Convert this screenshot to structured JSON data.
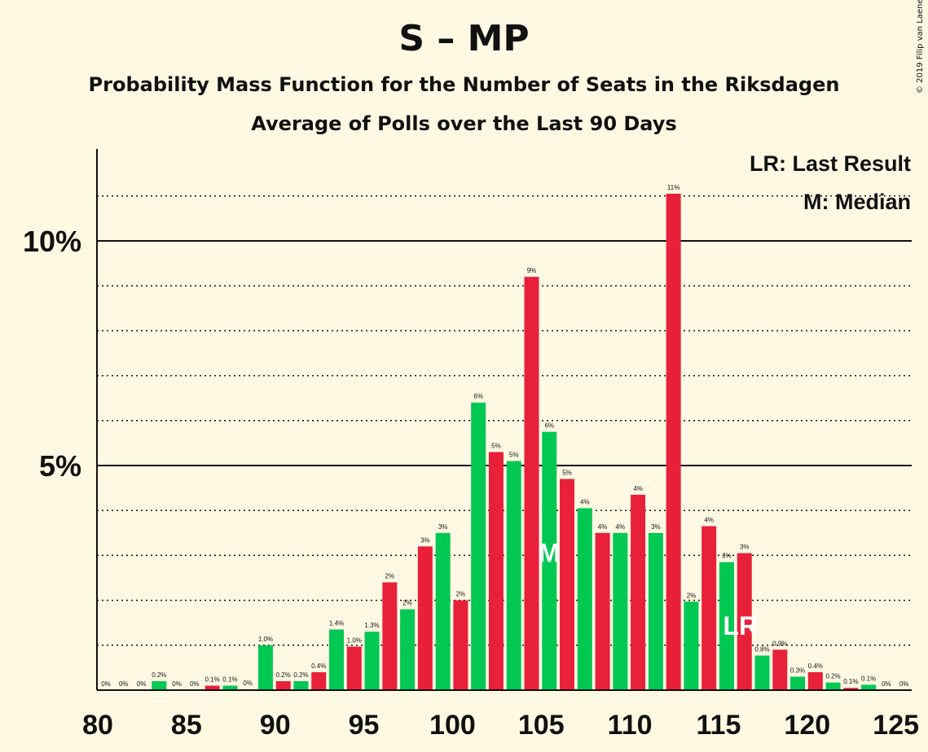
{
  "title": "S – MP",
  "subtitle": "Probability Mass Function for the Number of Seats in the Riksdagen",
  "subtitle2": "Average of Polls over the Last 90 Days",
  "copyright": "© 2019 Filip van Laenen",
  "legend": {
    "last_result": "LR: Last Result",
    "median": "M: Median"
  },
  "markers": {
    "median_label": "M",
    "median_seat": 105,
    "last_result_label": "LR",
    "last_result_seat": 116
  },
  "colors": {
    "background": "#fff9e3",
    "green": "#00c853",
    "red": "#e8203a"
  },
  "chart_data": {
    "type": "bar",
    "x": [
      80,
      81,
      82,
      83,
      84,
      85,
      86,
      87,
      88,
      89,
      90,
      91,
      92,
      93,
      94,
      95,
      96,
      97,
      98,
      99,
      100,
      101,
      102,
      103,
      104,
      105,
      106,
      107,
      108,
      109,
      110,
      111,
      112,
      113,
      114,
      115,
      116,
      117,
      118,
      119,
      120,
      121,
      122,
      123,
      124,
      125
    ],
    "values": [
      0,
      0,
      0,
      0.2,
      0,
      0,
      0.1,
      0.1,
      0.02,
      1.0,
      0.2,
      0.2,
      0.4,
      1.35,
      0.97,
      1.3,
      2.4,
      1.8,
      3.2,
      3.5,
      2.0,
      6.4,
      5.3,
      5.1,
      9.2,
      5.75,
      4.7,
      4.05,
      3.5,
      3.5,
      4.35,
      3.5,
      11.05,
      1.97,
      3.65,
      2.85,
      3.05,
      0.77,
      0.9,
      0.3,
      0.4,
      0.17,
      0.05,
      0.12,
      0,
      0
    ],
    "labels": [
      "0%",
      "0%",
      "0%",
      "0.2%",
      "0%",
      "0%",
      "0.1%",
      "0.1%",
      "0%",
      "1.0%",
      "0.2%",
      "0.2%",
      "0.4%",
      "1.4%",
      "1.0%",
      "1.3%",
      "2%",
      "2%",
      "3%",
      "3%",
      "2%",
      "6%",
      "5%",
      "5%",
      "9%",
      "6%",
      "5%",
      "4%",
      "4%",
      "4%",
      "4%",
      "3%",
      "11%",
      "2%",
      "4%",
      "3%",
      "3%",
      "0.8%",
      "0.9%",
      "0.3%",
      "0.4%",
      "0.2%",
      "0.1%",
      "0.1%",
      "0%",
      "0%"
    ],
    "x_ticks": [
      80,
      85,
      90,
      95,
      100,
      105,
      110,
      115,
      120,
      125
    ],
    "y_ticks": [
      {
        "value": 5,
        "label": "5%"
      },
      {
        "value": 10,
        "label": "10%"
      }
    ],
    "ylim": [
      0,
      12
    ],
    "xlim": [
      80,
      125
    ],
    "grid": "dotted every 1%, solid at 5% and 10%"
  }
}
